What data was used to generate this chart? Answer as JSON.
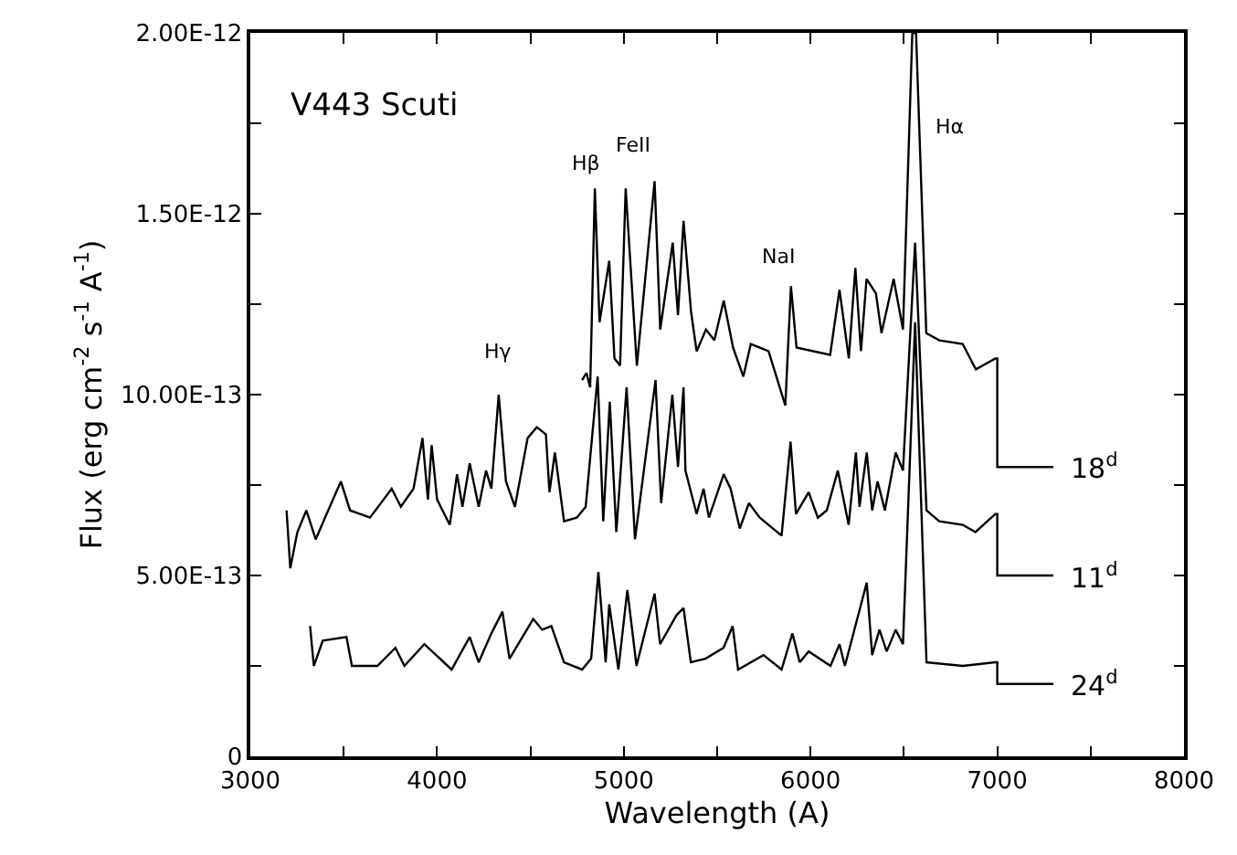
{
  "chart_data": {
    "type": "line",
    "xlabel": "Wavelength (A)",
    "ylabel": "Flux (erg cm$^{-2}$ s$^{-1}$ A$^{-1}$)",
    "annotations": [
      "V443 Scuti",
      "Hγ",
      "Hβ",
      "FeII",
      "NaI",
      "Hα"
    ],
    "xlim": [
      3000,
      8000
    ],
    "xticks": [
      3000,
      {
        "value": 3500,
        "label": null
      },
      4000,
      {
        "value": 4500,
        "label": null
      },
      5000,
      {
        "value": 5500,
        "label": null
      },
      6000,
      {
        "value": 6500,
        "label": null
      },
      7000,
      {
        "value": 7500,
        "label": null
      },
      8000
    ],
    "ylim": [
      0,
      2e-12
    ],
    "yticks": [
      {
        "value": 0,
        "label": "0"
      },
      {
        "value": 2.5e-13,
        "label": null
      },
      {
        "value": 5e-13,
        "label": "5.00E-13"
      },
      {
        "value": 7.5e-13,
        "label": null
      },
      {
        "value": 1e-12,
        "label": "10.00E-13"
      },
      {
        "value": 1.25e-12,
        "label": null
      },
      {
        "value": 1.5e-12,
        "label": "1.50E-12"
      },
      {
        "value": 1.75e-12,
        "label": null
      },
      {
        "value": 2e-12,
        "label": "2.00E-12"
      }
    ],
    "legend": "right",
    "marker": "none",
    "line_style": "solid",
    "series": [
      {
        "name": "18$^{d}$",
        "color": "#000000",
        "x": [
          4777,
          4800,
          4820,
          4845,
          4870,
          4922,
          4950,
          4980,
          5010,
          5070,
          5165,
          5195,
          5262,
          5290,
          5320,
          5360,
          5390,
          5440,
          5485,
          5535,
          5585,
          5640,
          5680,
          5775,
          5865,
          5895,
          5925,
          6105,
          6155,
          6205,
          6240,
          6270,
          6300,
          6350,
          6380,
          6445,
          6495,
          6545,
          6565,
          6620,
          6690,
          6815,
          6885,
          6990,
          7000,
          7000,
          7300
        ],
        "values": [
          1.04e-12,
          1.06e-12,
          1.02e-12,
          1.57e-12,
          1.2e-12,
          1.37e-12,
          1.1e-12,
          1.08e-12,
          1.57e-12,
          1.08e-12,
          1.59e-12,
          1.18e-12,
          1.42e-12,
          1.22e-12,
          1.48e-12,
          1.23e-12,
          1.12e-12,
          1.18e-12,
          1.15e-12,
          1.26e-12,
          1.13e-12,
          1.05e-12,
          1.14e-12,
          1.12e-12,
          9.7e-13,
          1.3e-12,
          1.13e-12,
          1.11e-12,
          1.29e-12,
          1.1e-12,
          1.35e-12,
          1.12e-12,
          1.32e-12,
          1.28e-12,
          1.17e-12,
          1.32e-12,
          1.18e-12,
          2e-12,
          2e-12,
          1.17e-12,
          1.15e-12,
          1.14e-12,
          1.07e-12,
          1.1e-12,
          1.1e-12,
          8e-13,
          8e-13
        ]
      },
      {
        "name": "11$^{d}$",
        "color": "#000000",
        "x": [
          3194,
          3214,
          3252,
          3300,
          3350,
          3417,
          3485,
          3534,
          3641,
          3757,
          3806,
          3874,
          3922,
          3951,
          3971,
          4000,
          4068,
          4107,
          4136,
          4175,
          4223,
          4262,
          4291,
          4330,
          4369,
          4417,
          4485,
          4534,
          4583,
          4602,
          4631,
          4680,
          4748,
          4796,
          4860,
          4890,
          4925,
          4960,
          5015,
          5060,
          5170,
          5200,
          5260,
          5290,
          5320,
          5330,
          5390,
          5427,
          5456,
          5535,
          5572,
          5621,
          5670,
          5728,
          5845,
          5893,
          5922,
          5990,
          6039,
          6087,
          6146,
          6204,
          6243,
          6262,
          6301,
          6330,
          6359,
          6398,
          6456,
          6495,
          6560,
          6621,
          6689,
          6815,
          6883,
          6990,
          7000,
          7000,
          7300
        ],
        "values": [
          6.8e-13,
          5.2e-13,
          6.2e-13,
          6.8e-13,
          6e-13,
          6.8e-13,
          7.6e-13,
          6.8e-13,
          6.6e-13,
          7.4e-13,
          6.9e-13,
          7.4e-13,
          8.8e-13,
          7.1e-13,
          8.6e-13,
          7.1e-13,
          6.4e-13,
          7.8e-13,
          6.9e-13,
          8.1e-13,
          6.9e-13,
          7.9e-13,
          7.4e-13,
          1e-12,
          7.6e-13,
          6.9e-13,
          8.8e-13,
          9.1e-13,
          8.9e-13,
          7.3e-13,
          8.4e-13,
          6.5e-13,
          6.6e-13,
          6.9e-13,
          1.05e-12,
          6.5e-13,
          9.8e-13,
          6.2e-13,
          1.02e-12,
          6e-13,
          1.04e-12,
          7e-13,
          1e-12,
          8e-13,
          1.02e-12,
          7.9e-13,
          6.7e-13,
          7.4e-13,
          6.6e-13,
          7.8e-13,
          7.4e-13,
          6.3e-13,
          7e-13,
          6.6e-13,
          6.1e-13,
          8.7e-13,
          6.7e-13,
          7.3e-13,
          6.6e-13,
          6.8e-13,
          7.9e-13,
          6.4e-13,
          8.4e-13,
          6.9e-13,
          8.4e-13,
          6.8e-13,
          7.6e-13,
          6.8e-13,
          8.4e-13,
          7.9e-13,
          1.42e-12,
          6.8e-13,
          6.5e-13,
          6.4e-13,
          6.2e-13,
          6.7e-13,
          6.7e-13,
          5e-13,
          5e-13
        ]
      },
      {
        "name": "24$^{d}$",
        "color": "#000000",
        "x": [
          3320,
          3340,
          3388,
          3515,
          3544,
          3680,
          3777,
          3825,
          3932,
          4078,
          4175,
          4223,
          4291,
          4350,
          4388,
          4515,
          4563,
          4612,
          4680,
          4777,
          4825,
          4864,
          4903,
          4922,
          4971,
          5019,
          5068,
          5165,
          5194,
          5282,
          5320,
          5359,
          5437,
          5534,
          5583,
          5612,
          5748,
          5845,
          5903,
          5942,
          5990,
          6107,
          6155,
          6184,
          6301,
          6330,
          6369,
          6408,
          6456,
          6495,
          6560,
          6621,
          6815,
          6990,
          7000,
          7000,
          7300
        ],
        "values": [
          3.6e-13,
          2.5e-13,
          3.2e-13,
          3.3e-13,
          2.5e-13,
          2.5e-13,
          3e-13,
          2.5e-13,
          3.1e-13,
          2.4e-13,
          3.3e-13,
          2.6e-13,
          3.4e-13,
          4e-13,
          2.7e-13,
          3.8e-13,
          3.5e-13,
          3.6e-13,
          2.6e-13,
          2.4e-13,
          2.7e-13,
          5.1e-13,
          2.6e-13,
          4.2e-13,
          2.4e-13,
          4.6e-13,
          2.5e-13,
          4.5e-13,
          3.1e-13,
          3.9e-13,
          4.1e-13,
          2.6e-13,
          2.7e-13,
          3e-13,
          3.6e-13,
          2.4e-13,
          2.8e-13,
          2.4e-13,
          3.4e-13,
          2.6e-13,
          2.9e-13,
          2.5e-13,
          3.1e-13,
          2.5e-13,
          4.8e-13,
          2.8e-13,
          3.5e-13,
          2.9e-13,
          3.5e-13,
          3.1e-13,
          1.2e-12,
          2.6e-13,
          2.5e-13,
          2.6e-13,
          2.6e-13,
          2e-13,
          2e-13
        ]
      }
    ]
  }
}
